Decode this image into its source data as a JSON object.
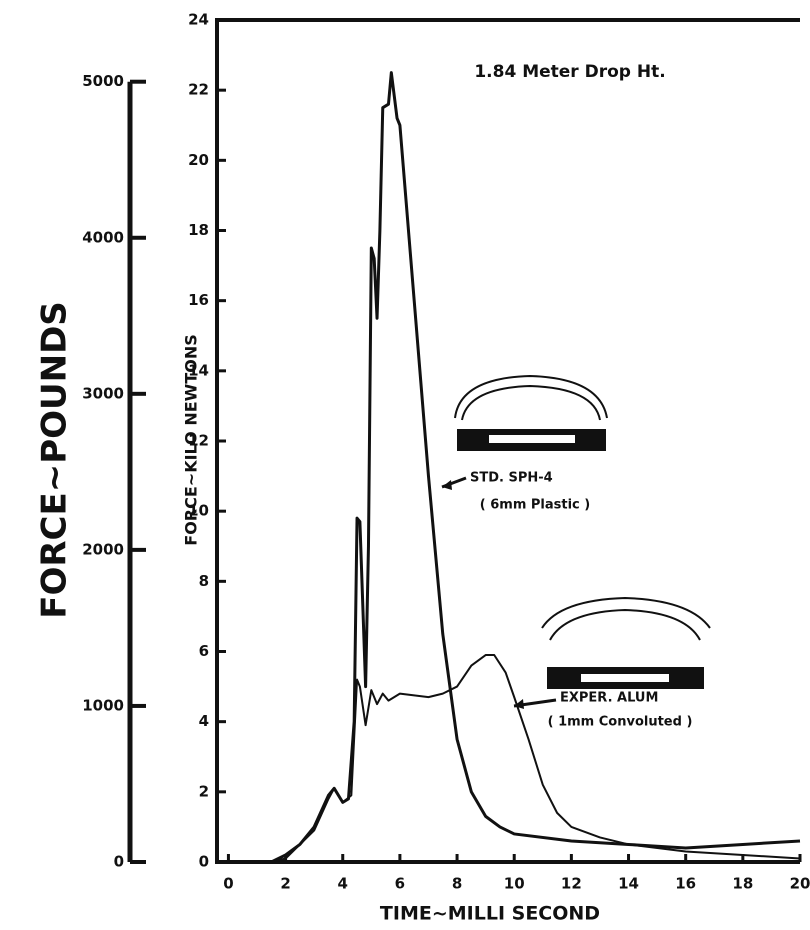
{
  "chart_data": {
    "type": "line",
    "annotation": "1.84 Meter Drop Ht.",
    "xlabel": "TIME~MILLI SECOND",
    "ylabel": "FORCE~KILO NEWTONS",
    "y2label": "FORCE~POUNDS",
    "xlim": [
      -0.4,
      20
    ],
    "xticks": [
      0,
      2,
      4,
      6,
      8,
      10,
      12,
      14,
      16,
      18,
      20
    ],
    "ylim": [
      0,
      24
    ],
    "yticks": [
      0,
      2,
      4,
      6,
      8,
      10,
      12,
      14,
      16,
      18,
      20,
      22,
      24
    ],
    "y2lim": [
      0,
      5395.4
    ],
    "y2ticks": [
      0,
      1000,
      2000,
      3000,
      4000,
      5000
    ],
    "series": [
      {
        "name": "STD. SPH-4",
        "description": "( 6mm Plastic )",
        "color": "#111111",
        "x": [
          1.5,
          2,
          2.5,
          3,
          3.5,
          3.7,
          4,
          4.2,
          4.4,
          4.5,
          4.6,
          4.8,
          4.9,
          5,
          5.1,
          5.2,
          5.3,
          5.4,
          5.6,
          5.7,
          5.9,
          6,
          6.2,
          6.5,
          7,
          7.5,
          8,
          8.5,
          9,
          9.5,
          10,
          12,
          14,
          16,
          18,
          20
        ],
        "values": [
          0,
          0.2,
          0.5,
          1,
          1.9,
          2.1,
          1.7,
          1.8,
          4,
          9.8,
          9.7,
          5,
          9,
          17.5,
          17.2,
          15.5,
          18,
          21.5,
          21.6,
          22.5,
          21.2,
          21,
          19,
          16,
          11,
          6.5,
          3.5,
          2,
          1.3,
          1,
          0.8,
          0.6,
          0.5,
          0.4,
          0.5,
          0.6
        ]
      },
      {
        "name": "EXPER. ALUM",
        "description": "( 1mm Convoluted )",
        "color": "#111111",
        "x": [
          1.5,
          2,
          3,
          3.5,
          3.7,
          4,
          4.3,
          4.5,
          4.6,
          4.8,
          5,
          5.2,
          5.4,
          5.6,
          6,
          7,
          7.5,
          8,
          8.5,
          9,
          9.3,
          9.7,
          10,
          10.5,
          11,
          11.5,
          12,
          13,
          14,
          16,
          18,
          20
        ],
        "values": [
          0,
          0.1,
          0.9,
          1.8,
          2.1,
          1.7,
          1.9,
          5.2,
          5,
          3.9,
          4.9,
          4.5,
          4.8,
          4.6,
          4.8,
          4.7,
          4.8,
          5,
          5.6,
          5.9,
          5.9,
          5.4,
          4.7,
          3.5,
          2.2,
          1.4,
          1,
          0.7,
          0.5,
          0.3,
          0.2,
          0.1
        ]
      }
    ]
  }
}
